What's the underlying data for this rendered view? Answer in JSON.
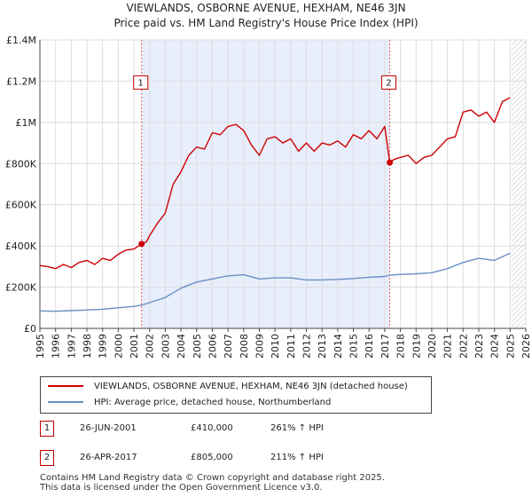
{
  "title": "VIEWLANDS, OSBORNE AVENUE, HEXHAM, NE46 3JN",
  "subtitle": "Price paid vs. HM Land Registry's House Price Index (HPI)",
  "chart_data": {
    "type": "line",
    "title": "VIEWLANDS, OSBORNE AVENUE, HEXHAM, NE46 3JN",
    "xlabel": "",
    "ylabel": "",
    "xlim": [
      1995,
      2026
    ],
    "ylim": [
      0,
      1400000
    ],
    "y_ticks": [
      0,
      200000,
      400000,
      600000,
      800000,
      1000000,
      1200000,
      1400000
    ],
    "y_tick_labels": [
      "£0",
      "£200K",
      "£400K",
      "£600K",
      "£800K",
      "£1M",
      "£1.2M",
      "£1.4M"
    ],
    "x_ticks": [
      "1995",
      "1996",
      "1997",
      "1998",
      "1999",
      "2000",
      "2001",
      "2002",
      "2003",
      "2004",
      "2005",
      "2006",
      "2007",
      "2008",
      "2009",
      "2010",
      "2011",
      "2012",
      "2013",
      "2014",
      "2015",
      "2016",
      "2017",
      "2018",
      "2019",
      "2020",
      "2021",
      "2022",
      "2023",
      "2024",
      "2025",
      "2026"
    ],
    "shaded_period": [
      2001.49,
      2017.32
    ],
    "future_hatch_start": 2025.1,
    "series": [
      {
        "name": "VIEWLANDS, OSBORNE AVENUE, HEXHAM, NE46 3JN (detached house)",
        "color": "#cc0000",
        "x": [
          1995.0,
          1995.5,
          1996.0,
          1996.5,
          1997.0,
          1997.5,
          1998.0,
          1998.5,
          1999.0,
          1999.5,
          2000.0,
          2000.5,
          2001.0,
          2001.49,
          2001.8,
          2002.0,
          2002.5,
          2003.0,
          2003.5,
          2004.0,
          2004.5,
          2005.0,
          2005.5,
          2006.0,
          2006.5,
          2007.0,
          2007.5,
          2008.0,
          2008.5,
          2009.0,
          2009.5,
          2010.0,
          2010.5,
          2011.0,
          2011.5,
          2012.0,
          2012.5,
          2013.0,
          2013.5,
          2014.0,
          2014.5,
          2015.0,
          2015.5,
          2016.0,
          2016.5,
          2017.0,
          2017.32,
          2017.6,
          2018.0,
          2018.5,
          2019.0,
          2019.5,
          2020.0,
          2020.5,
          2021.0,
          2021.5,
          2022.0,
          2022.5,
          2023.0,
          2023.5,
          2024.0,
          2024.5,
          2025.0
        ],
        "y": [
          305000,
          300000,
          290000,
          310000,
          295000,
          320000,
          330000,
          310000,
          340000,
          330000,
          360000,
          380000,
          385000,
          410000,
          420000,
          450000,
          510000,
          560000,
          700000,
          760000,
          840000,
          880000,
          870000,
          950000,
          940000,
          980000,
          990000,
          960000,
          890000,
          840000,
          920000,
          930000,
          900000,
          920000,
          860000,
          900000,
          860000,
          900000,
          890000,
          910000,
          880000,
          940000,
          920000,
          960000,
          920000,
          980000,
          805000,
          820000,
          830000,
          840000,
          800000,
          830000,
          840000,
          880000,
          920000,
          930000,
          1050000,
          1060000,
          1030000,
          1050000,
          1000000,
          1100000,
          1120000
        ]
      },
      {
        "name": "HPI: Average price, detached house, Northumberland",
        "color": "#6a8fc4",
        "x": [
          1995.0,
          1996.0,
          1997.0,
          1998.0,
          1999.0,
          2000.0,
          2001.0,
          2001.49,
          2002.0,
          2003.0,
          2004.0,
          2005.0,
          2006.0,
          2007.0,
          2008.0,
          2009.0,
          2010.0,
          2011.0,
          2012.0,
          2013.0,
          2014.0,
          2015.0,
          2016.0,
          2017.0,
          2017.32,
          2018.0,
          2019.0,
          2020.0,
          2021.0,
          2022.0,
          2023.0,
          2024.0,
          2025.0
        ],
        "y": [
          85000,
          83000,
          86000,
          89000,
          93000,
          100000,
          107000,
          113000,
          125000,
          150000,
          195000,
          225000,
          240000,
          255000,
          260000,
          240000,
          245000,
          245000,
          235000,
          235000,
          238000,
          242000,
          248000,
          252000,
          258000,
          262000,
          265000,
          270000,
          290000,
          320000,
          340000,
          330000,
          365000
        ]
      }
    ],
    "annotations": [
      {
        "label": "1",
        "x": 2001.49,
        "y": 410000
      },
      {
        "label": "2",
        "x": 2017.32,
        "y": 805000
      }
    ]
  },
  "legend": {
    "entries": [
      {
        "label": "VIEWLANDS, OSBORNE AVENUE, HEXHAM, NE46 3JN (detached house)",
        "color": "#cc0000"
      },
      {
        "label": "HPI: Average price, detached house, Northumberland",
        "color": "#6a8fc4"
      }
    ]
  },
  "sales": [
    {
      "num": "1",
      "date": "26-JUN-2001",
      "price": "£410,000",
      "hpi": "261% ↑ HPI"
    },
    {
      "num": "2",
      "date": "26-APR-2017",
      "price": "£805,000",
      "hpi": "211% ↑ HPI"
    }
  ],
  "footer": {
    "line1": "Contains HM Land Registry data © Crown copyright and database right 2025.",
    "line2": "This data is licensed under the Open Government Licence v3.0."
  }
}
